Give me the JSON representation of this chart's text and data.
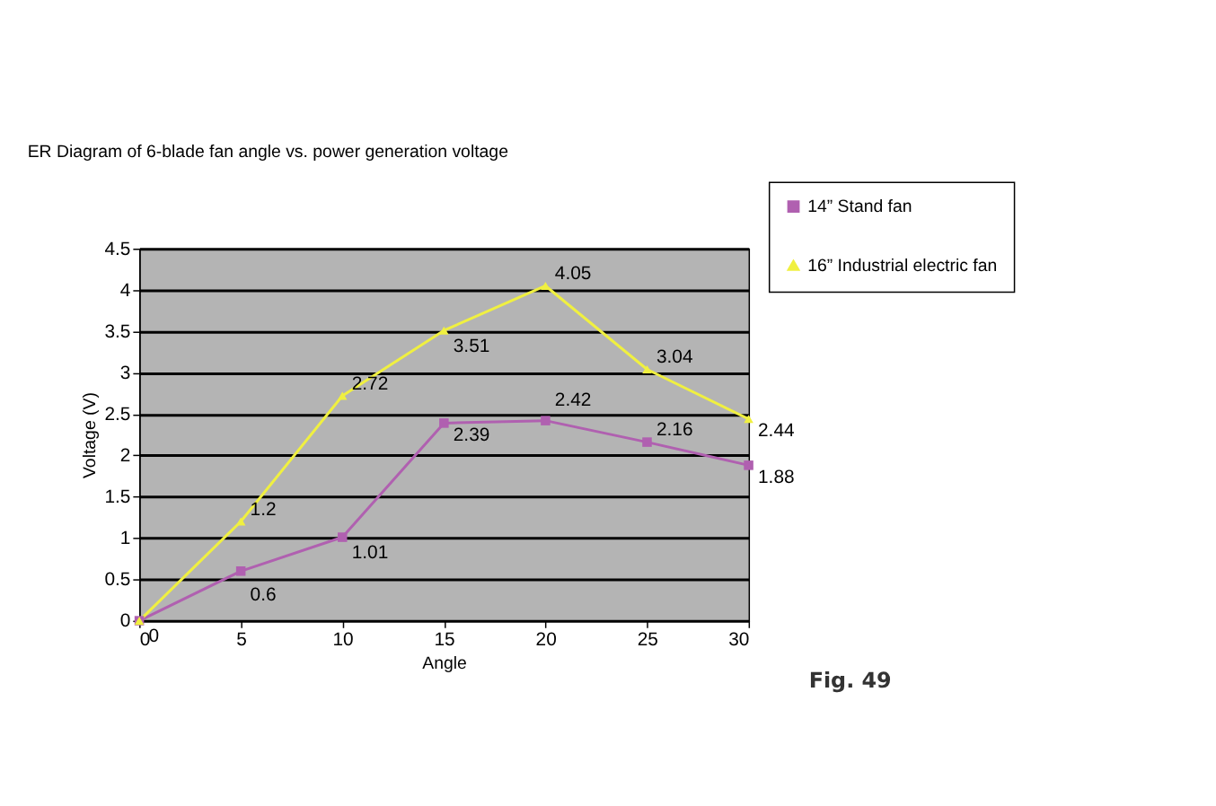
{
  "chart_data": {
    "type": "line",
    "title": "ER Diagram of 6-blade fan angle vs. power generation voltage",
    "xlabel": "Angle",
    "ylabel": "Voltage (V)",
    "x": [
      0,
      5,
      10,
      15,
      20,
      25,
      30
    ],
    "series": [
      {
        "name": "14” Stand fan",
        "color": "#b060b0",
        "marker": "square",
        "values": [
          0,
          0.6,
          1.01,
          2.39,
          2.42,
          2.16,
          1.88
        ],
        "value_labels": [
          "0",
          "0.6",
          "1.01",
          "2.39",
          "2.42",
          "2.16",
          "1.88"
        ]
      },
      {
        "name": "16” Industrial electric fan",
        "color": "#f0f040",
        "marker": "triangle",
        "values": [
          0,
          1.2,
          2.72,
          3.51,
          4.05,
          3.04,
          2.44
        ],
        "value_labels": [
          null,
          "1.2",
          "2.72",
          "3.51",
          "4.05",
          "3.04",
          "2.44"
        ]
      }
    ],
    "xlim": [
      0,
      30
    ],
    "xticks": [
      0,
      5,
      10,
      15,
      20,
      25,
      30
    ],
    "ylim": [
      0,
      4.5
    ],
    "yticks": [
      0,
      0.5,
      1,
      1.5,
      2,
      2.5,
      3,
      3.5,
      4,
      4.5
    ],
    "grid": "y",
    "legend": "top right",
    "line_style": "solid",
    "annotations": [
      "Fig. 49"
    ]
  }
}
